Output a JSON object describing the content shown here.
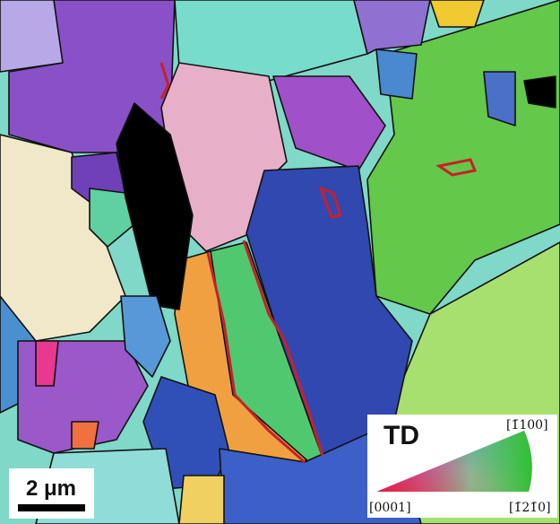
{
  "scale_bar": {
    "label": "2 μm"
  },
  "legend": {
    "title": "TD",
    "corner_top": "[1̄100]",
    "corner_left": "[0001]",
    "corner_right": "[1̄21̄0]"
  }
}
